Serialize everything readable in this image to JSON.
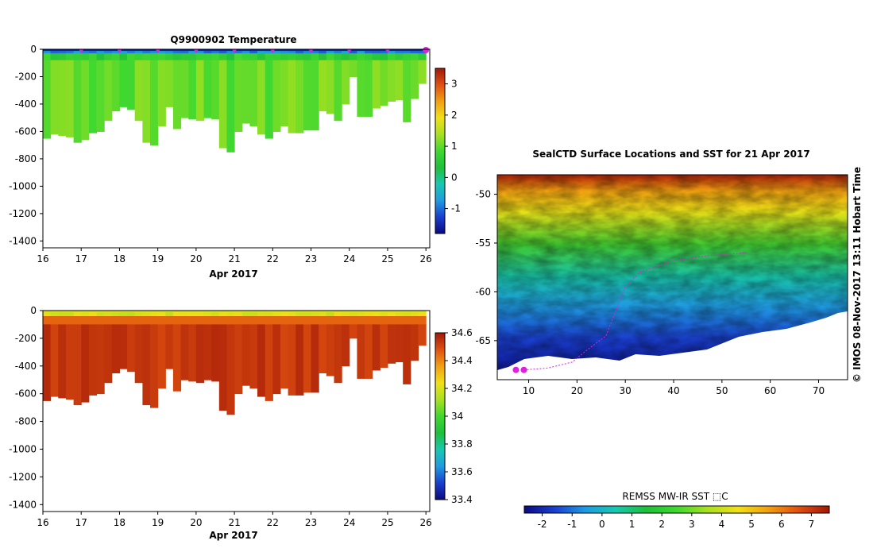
{
  "colors": {
    "temperature_scale": [
      "#0a0a80",
      "#1a3fcf",
      "#1f9be0",
      "#18c8b0",
      "#1fbf3a",
      "#40d830",
      "#a8e020",
      "#f0e018",
      "#f0a010",
      "#e05010",
      "#a01808"
    ],
    "salinity_scale": [
      "#0a0a80",
      "#1a3fcf",
      "#1f9be0",
      "#18c8b0",
      "#1fbf3a",
      "#40d830",
      "#a8e020",
      "#f0e018",
      "#f0a010",
      "#e05010",
      "#a01808"
    ],
    "track": "#e020e0"
  },
  "chart_data": [
    {
      "type": "heatmap",
      "title": "Q9900902  Temperature",
      "xlabel": "Apr 2017",
      "x_ticks": [
        "16",
        "17",
        "18",
        "19",
        "20",
        "21",
        "22",
        "23",
        "24",
        "25",
        "26"
      ],
      "xlim": [
        16,
        26.1
      ],
      "y_ticks": [
        "0",
        "-200",
        "-400",
        "-600",
        "-800",
        "-1000",
        "-1200",
        "-1400"
      ],
      "ylim": [
        -1450,
        0
      ],
      "colorbar": {
        "ticks": [
          "-1",
          "0",
          "1",
          "2",
          "3"
        ],
        "range": [
          -1.8,
          3.5
        ]
      },
      "profile_times": [
        16.0,
        16.2,
        16.4,
        16.6,
        16.8,
        17.0,
        17.2,
        17.4,
        17.6,
        17.8,
        18.0,
        18.2,
        18.4,
        18.6,
        18.8,
        19.0,
        19.2,
        19.4,
        19.6,
        19.8,
        20.0,
        20.2,
        20.4,
        20.6,
        20.8,
        21.0,
        21.2,
        21.4,
        21.6,
        21.8,
        22.0,
        22.2,
        22.4,
        22.6,
        22.8,
        23.0,
        23.2,
        23.4,
        23.6,
        23.8,
        24.0,
        24.2,
        24.4,
        24.6,
        24.8,
        25.0,
        25.2,
        25.4,
        25.6,
        25.8,
        26.0
      ],
      "profile_depths": [
        650,
        620,
        630,
        640,
        680,
        660,
        610,
        600,
        520,
        450,
        420,
        440,
        520,
        680,
        700,
        560,
        420,
        580,
        500,
        510,
        520,
        500,
        510,
        720,
        750,
        600,
        540,
        560,
        620,
        650,
        600,
        560,
        610,
        610,
        590,
        590,
        450,
        470,
        520,
        400,
        200,
        490,
        490,
        430,
        410,
        380,
        370,
        530,
        360,
        250
      ],
      "marker_times": [
        17,
        18,
        19,
        20,
        21,
        22,
        23,
        24,
        25
      ],
      "surface_value": -1.5,
      "deep_value": 0.9
    },
    {
      "type": "heatmap",
      "title": "",
      "xlabel": "Apr 2017",
      "x_ticks": [
        "16",
        "17",
        "18",
        "19",
        "20",
        "21",
        "22",
        "23",
        "24",
        "25",
        "26"
      ],
      "xlim": [
        16,
        26.1
      ],
      "y_ticks": [
        "0",
        "-200",
        "-400",
        "-600",
        "-800",
        "-1000",
        "-1200",
        "-1400"
      ],
      "ylim": [
        -1450,
        0
      ],
      "colorbar": {
        "ticks": [
          "33.4",
          "33.6",
          "33.8",
          "34",
          "34.2",
          "34.4",
          "34.6"
        ],
        "range": [
          33.4,
          34.6
        ]
      },
      "surface_value": 34.1,
      "deep_value": 34.55
    },
    {
      "type": "heatmap",
      "title": "SealCTD Surface Locations and SST for 21 Apr 2017",
      "x_ticks": [
        "10",
        "20",
        "30",
        "40",
        "50",
        "60",
        "70"
      ],
      "xlim": [
        3.5,
        76
      ],
      "y_ticks": [
        "-50",
        "-55",
        "-60",
        "-65"
      ],
      "ylim": [
        -69,
        -48
      ],
      "colorbar": {
        "label": "REMSS MW-IR SST ⬚C",
        "ticks": [
          "-2",
          "-1",
          "0",
          "1",
          "2",
          "3",
          "4",
          "5",
          "6",
          "7"
        ],
        "range": [
          -2.6,
          7.6
        ]
      },
      "track": [
        [
          9,
          -68
        ],
        [
          14,
          -67.8
        ],
        [
          19,
          -67.2
        ],
        [
          22,
          -66
        ],
        [
          26,
          -64.5
        ],
        [
          28,
          -62
        ],
        [
          30,
          -59.5
        ],
        [
          33,
          -58
        ],
        [
          40,
          -56.8
        ],
        [
          47,
          -56.3
        ],
        [
          55,
          -56
        ]
      ],
      "current_position": [
        9,
        -68
      ],
      "side_label": "©  IMOS 08-Nov-2017 13:11 Hobart Time"
    }
  ]
}
